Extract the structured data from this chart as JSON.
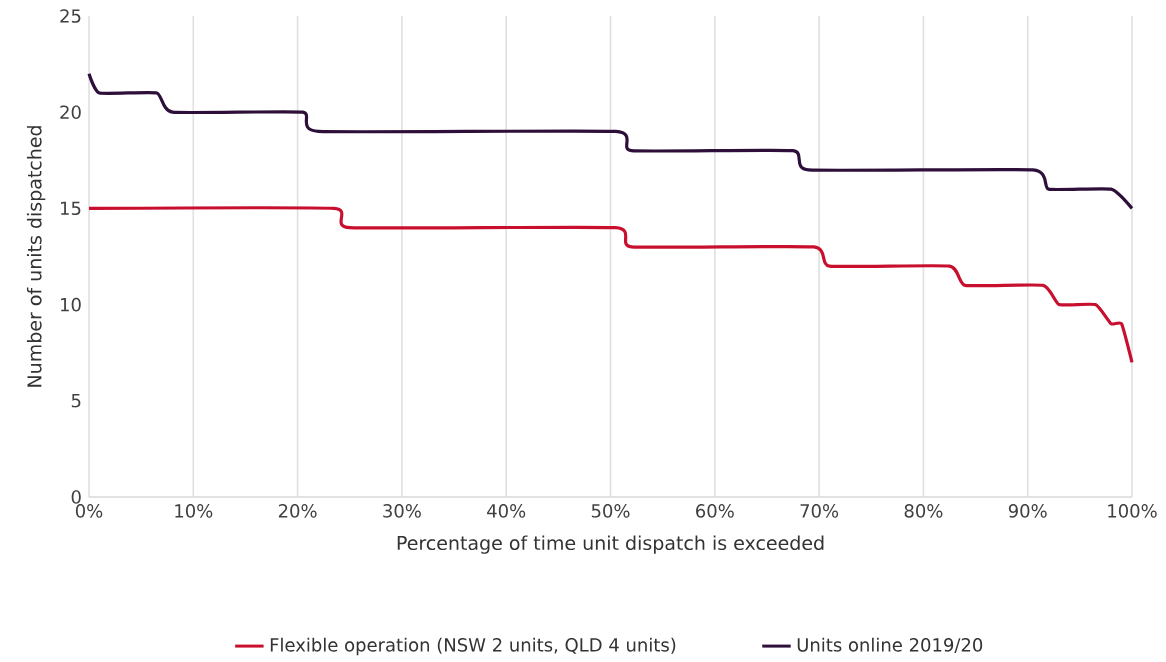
{
  "chart_data": {
    "type": "line",
    "xlabel": "Percentage of time unit dispatch is exceeded",
    "ylabel": "Number of units dispatched",
    "series": [
      {
        "name": "Flexible operation (NSW 2 units, QLD 4 units)",
        "color": "#c8102e",
        "x": [
          0,
          23.5,
          25,
          50.5,
          52,
          69.5,
          71,
          82.5,
          84,
          91.5,
          93,
          96.5,
          98,
          99,
          100
        ],
        "values": [
          15,
          15,
          14,
          14,
          13,
          13,
          12,
          12,
          11,
          11,
          10,
          10,
          9,
          9,
          7
        ]
      },
      {
        "name": "Units online 2019/20",
        "color": "#2d0f3a",
        "x": [
          0,
          1,
          6.5,
          8,
          20.5,
          22,
          50.5,
          52,
          67.5,
          69,
          90.5,
          92,
          98,
          100
        ],
        "values": [
          22,
          21,
          21,
          20,
          20,
          19,
          19,
          18,
          18,
          17,
          17,
          16,
          16,
          15
        ]
      }
    ],
    "xlim": [
      0,
      100
    ],
    "xticks": [
      {
        "value": 0,
        "label": "0%"
      },
      {
        "value": 10,
        "label": "10%"
      },
      {
        "value": 20,
        "label": "20%"
      },
      {
        "value": 30,
        "label": "30%"
      },
      {
        "value": 40,
        "label": "40%"
      },
      {
        "value": 50,
        "label": "50%"
      },
      {
        "value": 60,
        "label": "60%"
      },
      {
        "value": 70,
        "label": "70%"
      },
      {
        "value": 80,
        "label": "80%"
      },
      {
        "value": 90,
        "label": "90%"
      },
      {
        "value": 100,
        "label": "100%"
      }
    ],
    "ylim": [
      0,
      25
    ],
    "yticks": [
      0,
      5,
      10,
      15,
      20,
      25
    ],
    "grid": "x",
    "legend": "bottom"
  }
}
